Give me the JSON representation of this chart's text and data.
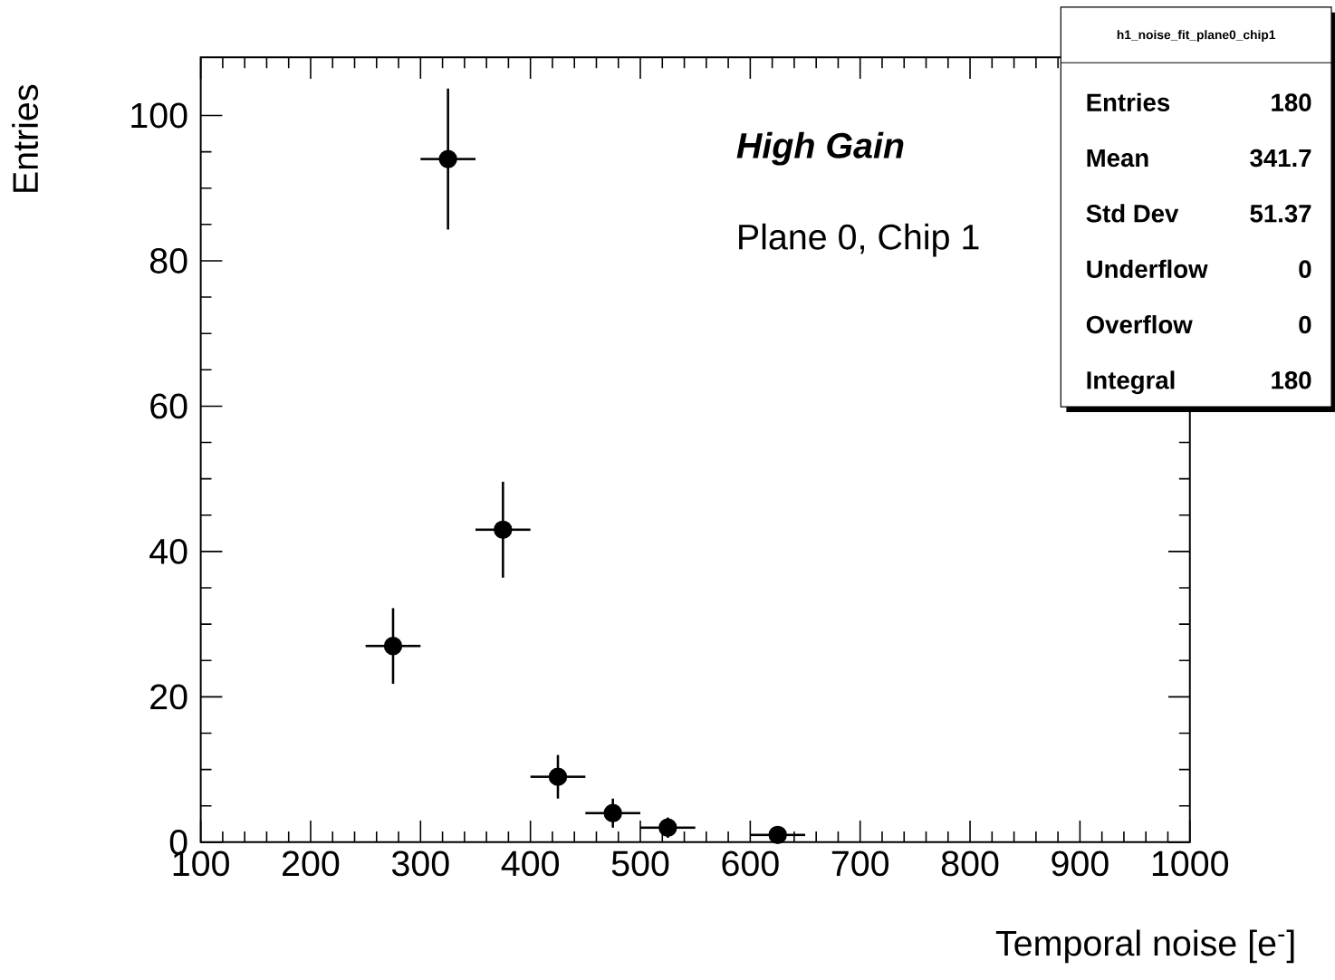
{
  "chart_data": {
    "type": "scatter",
    "marker": "circle",
    "color": "#000000",
    "x": [
      275,
      325,
      375,
      425,
      475,
      525,
      625
    ],
    "values": [
      27,
      94,
      43,
      9,
      4,
      2,
      1
    ],
    "errors": [
      5.2,
      9.7,
      6.6,
      3,
      2,
      1.4,
      1
    ],
    "xerrors": [
      25,
      25,
      25,
      25,
      25,
      25,
      25
    ],
    "xlim": [
      100,
      1000
    ],
    "ylim": [
      0,
      108
    ],
    "xticks": [
      100,
      200,
      300,
      400,
      500,
      600,
      700,
      800,
      900,
      1000
    ],
    "yticks": [
      0,
      20,
      40,
      60,
      80,
      100
    ],
    "xlabel": "Temporal noise [e$^{-}$]",
    "ylabel": "Entries",
    "annotations": [
      "High Gain",
      "Plane 0, Chip 1",
      "h1_noise_fit_plane0_chip1",
      "Entries",
      "180",
      "Mean",
      "341.7",
      "Std Dev",
      "51.37",
      "Underflow",
      "0",
      "Overflow",
      "0",
      "Integral",
      "180"
    ]
  }
}
